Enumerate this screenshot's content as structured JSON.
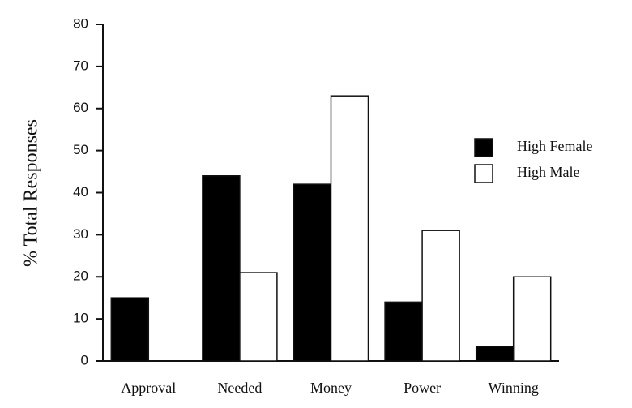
{
  "chart_data": {
    "type": "bar",
    "ylabel": "% Total Responses",
    "categories": [
      "Approval",
      "Needed",
      "Money",
      "Power",
      "Winning"
    ],
    "series": [
      {
        "name": "High Female",
        "color": "#000000",
        "values": [
          15,
          44,
          42,
          14,
          3.5
        ]
      },
      {
        "name": "High Male",
        "color": "#ffffff",
        "values": [
          0,
          21,
          63,
          31,
          20
        ]
      }
    ],
    "ylim": [
      0,
      80
    ],
    "yticks": [
      0,
      10,
      20,
      30,
      40,
      50,
      60,
      70,
      80
    ],
    "legend": "right"
  }
}
